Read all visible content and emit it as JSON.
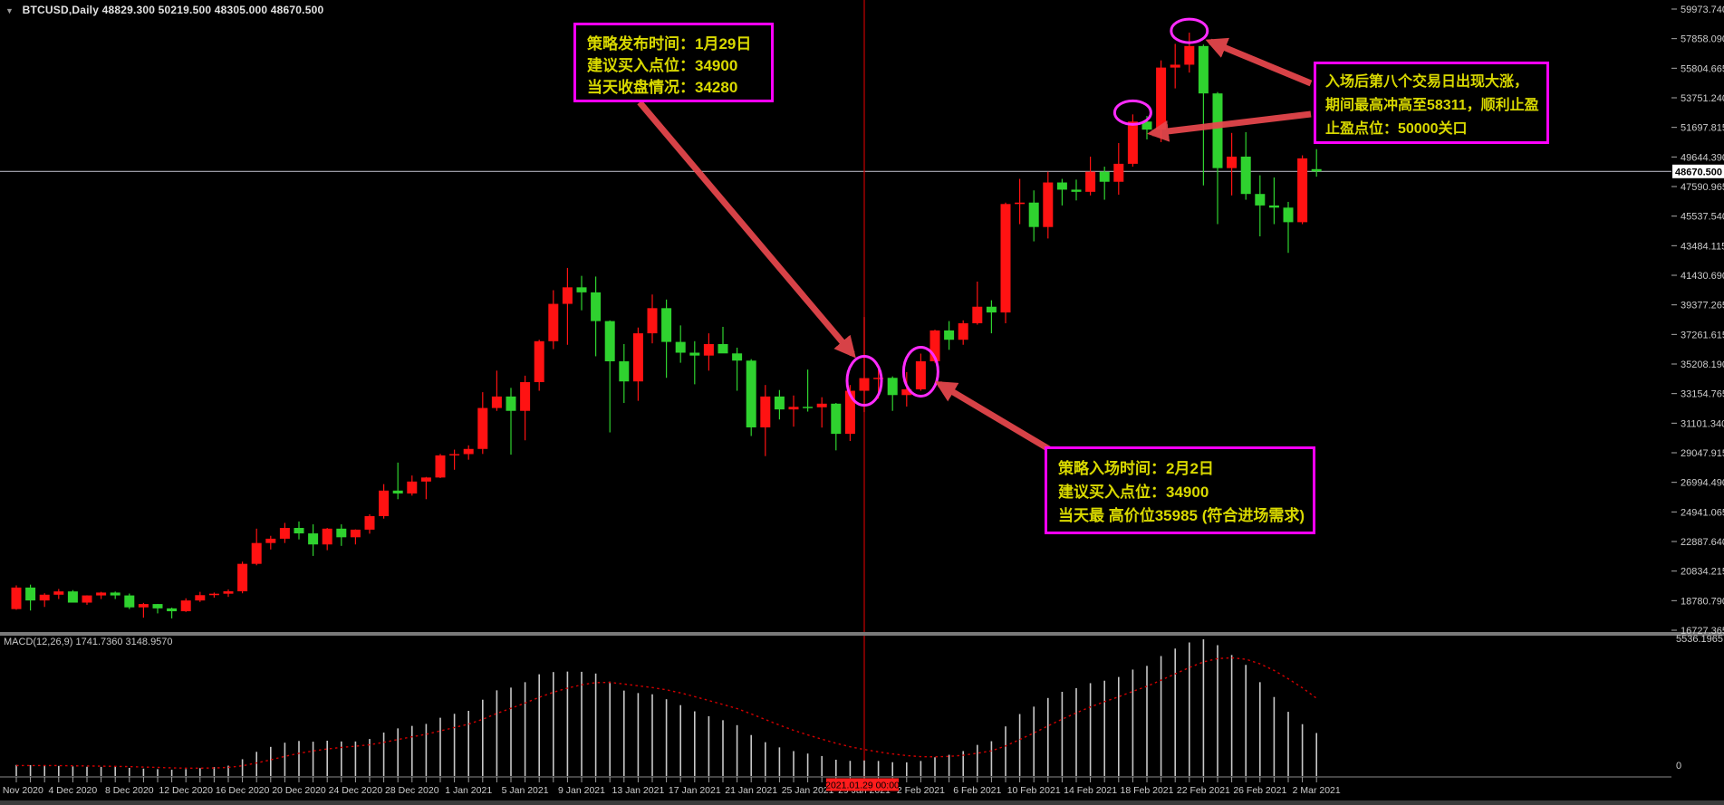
{
  "title": {
    "symbol": "BTCUSD,Daily",
    "ohlc": "48829.300 50219.500 48305.000 48670.500"
  },
  "indicator": {
    "name": "MACD(12,26,9)",
    "values": "1741.7360 3148.9570"
  },
  "annotations": {
    "release": {
      "lines": [
        "策略发布时间：1月29日",
        "建议买入点位：34900",
        "当天收盘情况：34280"
      ]
    },
    "profit": {
      "lines": [
        "入场后第八个交易日出现大涨，",
        "期间最高冲高至58311，顺利止盈",
        "止盈点位：50000关口"
      ]
    },
    "entry": {
      "lines": [
        "策略入场时间：2月2日",
        "建议买入点位：34900",
        "当天最 高价位35985 (符合进场需求)"
      ]
    }
  },
  "colors": {
    "bull": "#ff1212",
    "bear": "#2fd22f",
    "histogram": "#c8c8c8",
    "signal_line": "#d40000",
    "price_line": "#aeaeba",
    "crosshair": "#c40000",
    "annotation_border": "#ff00ff",
    "annotation_text": "#d9d900",
    "arrow": "#e8474d",
    "badge_bg": "#ff1c1c",
    "axis_text": "#cccccc"
  },
  "chart_data": {
    "type": "candlestick",
    "symbol": "BTCUSD",
    "timeframe": "Daily",
    "legend_position": "none",
    "grid": false,
    "current_price": "48670.500",
    "crosshair_date_label": "2021.01.29 00:00",
    "crosshair_date": "29 Jan 2021",
    "price_axis_labels": [
      "59973.740",
      "57858.090",
      "55804.665",
      "53751.240",
      "51697.815",
      "49644.390",
      "47590.965",
      "45537.540",
      "43484.115",
      "41430.690",
      "39377.265",
      "37261.615",
      "35208.190",
      "33154.765",
      "31101.340",
      "29047.915",
      "26994.490",
      "24941.065",
      "22887.640",
      "20834.215",
      "18780.790",
      "16727.365"
    ],
    "price_axis_range": [
      16727.365,
      59973.74
    ],
    "macd_axis": {
      "max_label": "5536.1965",
      "zero_label": "0",
      "max": 5536.1965
    },
    "columns": [
      "date",
      "open",
      "high",
      "low",
      "close",
      "macd",
      "signal"
    ],
    "candles": [
      [
        "30 Nov 2020",
        18200,
        19850,
        18150,
        19700,
        450,
        420
      ],
      [
        "1 Dec 2020",
        19700,
        19900,
        18100,
        18800,
        440,
        425
      ],
      [
        "2 Dec 2020",
        18800,
        19300,
        18350,
        19200,
        420,
        424
      ],
      [
        "3 Dec 2020",
        19200,
        19600,
        18900,
        19430,
        410,
        421
      ],
      [
        "4 Dec 2020",
        19430,
        19520,
        18650,
        18650,
        390,
        415
      ],
      [
        "5 Dec 2020",
        18650,
        19160,
        18500,
        19150,
        375,
        407
      ],
      [
        "6 Dec 2020",
        19150,
        19400,
        18900,
        19350,
        370,
        400
      ],
      [
        "7 Dec 2020",
        19350,
        19420,
        18900,
        19150,
        365,
        393
      ],
      [
        "8 Dec 2020",
        19150,
        19280,
        18200,
        18320,
        330,
        380
      ],
      [
        "9 Dec 2020",
        18320,
        18630,
        17600,
        18550,
        300,
        364
      ],
      [
        "10 Dec 2020",
        18550,
        18560,
        17900,
        18250,
        280,
        347
      ],
      [
        "11 Dec 2020",
        18250,
        18300,
        17550,
        18050,
        255,
        329
      ],
      [
        "12 Dec 2020",
        18050,
        18950,
        18000,
        18800,
        280,
        319
      ],
      [
        "13 Dec 2020",
        18800,
        19400,
        18700,
        19170,
        320,
        319
      ],
      [
        "14 Dec 2020",
        19170,
        19350,
        19000,
        19270,
        365,
        328
      ],
      [
        "15 Dec 2020",
        19270,
        19570,
        19050,
        19440,
        420,
        347
      ],
      [
        "16 Dec 2020",
        19440,
        21500,
        19300,
        21350,
        680,
        413
      ],
      [
        "17 Dec 2020",
        21350,
        23800,
        21250,
        22800,
        980,
        527
      ],
      [
        "18 Dec 2020",
        22800,
        23300,
        22350,
        23100,
        1180,
        657
      ],
      [
        "19 Dec 2020",
        23100,
        24200,
        22800,
        23850,
        1350,
        796
      ],
      [
        "20 Dec 2020",
        23850,
        24300,
        23050,
        23470,
        1420,
        921
      ],
      [
        "21 Dec 2020",
        23470,
        24100,
        21900,
        22700,
        1390,
        1015
      ],
      [
        "22 Dec 2020",
        22700,
        23850,
        22300,
        23800,
        1430,
        1098
      ],
      [
        "23 Dec 2020",
        23800,
        24100,
        22600,
        23200,
        1400,
        1158
      ],
      [
        "24 Dec 2020",
        23200,
        23750,
        22700,
        23730,
        1400,
        1207
      ],
      [
        "25 Dec 2020",
        23730,
        24800,
        23450,
        24670,
        1500,
        1265
      ],
      [
        "26 Dec 2020",
        24670,
        26900,
        24500,
        26450,
        1760,
        1364
      ],
      [
        "27 Dec 2020",
        26450,
        28400,
        25850,
        26250,
        1930,
        1477
      ],
      [
        "28 Dec 2020",
        26250,
        27500,
        26100,
        27080,
        2030,
        1588
      ],
      [
        "29 Dec 2020",
        27080,
        27400,
        25850,
        27360,
        2110,
        1692
      ],
      [
        "30 Dec 2020",
        27360,
        29000,
        27320,
        28900,
        2360,
        1826
      ],
      [
        "31 Dec 2020",
        28900,
        29300,
        27900,
        28990,
        2520,
        1965
      ],
      [
        "1 Jan 2021",
        28990,
        29600,
        28600,
        29350,
        2640,
        2100
      ],
      [
        "2 Jan 2021",
        29350,
        33300,
        29000,
        32200,
        3090,
        2298
      ],
      [
        "3 Jan 2021",
        32200,
        34800,
        32000,
        33000,
        3470,
        2532
      ],
      [
        "4 Jan 2021",
        33000,
        33600,
        28950,
        32000,
        3580,
        2742
      ],
      [
        "5 Jan 2021",
        32000,
        34450,
        29950,
        34000,
        3800,
        2954
      ],
      [
        "6 Jan 2021",
        34000,
        36950,
        33400,
        36850,
        4120,
        3187
      ],
      [
        "7 Jan 2021",
        36850,
        40400,
        36300,
        39450,
        4210,
        3392
      ],
      [
        "8 Jan 2021",
        39450,
        41950,
        36600,
        40600,
        4230,
        3560
      ],
      [
        "9 Jan 2021",
        40600,
        41400,
        39000,
        40250,
        4220,
        3692
      ],
      [
        "10 Jan 2021",
        40250,
        41350,
        35800,
        38250,
        4150,
        3783
      ],
      [
        "11 Jan 2021",
        38250,
        38300,
        30500,
        35450,
        3820,
        3790
      ],
      [
        "12 Jan 2021",
        35450,
        36650,
        32550,
        34050,
        3460,
        3724
      ],
      [
        "13 Jan 2021",
        34050,
        37800,
        32700,
        37400,
        3360,
        3651
      ],
      [
        "14 Jan 2021",
        37400,
        40100,
        36700,
        39150,
        3310,
        3583
      ],
      [
        "15 Jan 2021",
        39150,
        39750,
        34300,
        36800,
        3110,
        3489
      ],
      [
        "16 Jan 2021",
        36800,
        37950,
        35350,
        36050,
        2870,
        3365
      ],
      [
        "17 Jan 2021",
        36050,
        36850,
        33850,
        35850,
        2620,
        3216
      ],
      [
        "18 Jan 2021",
        35850,
        37400,
        34800,
        36650,
        2420,
        3057
      ],
      [
        "19 Jan 2021",
        36650,
        37850,
        36200,
        36000,
        2260,
        2897
      ],
      [
        "20 Jan 2021",
        36000,
        36400,
        33400,
        35500,
        2060,
        2730
      ],
      [
        "21 Jan 2021",
        35500,
        35600,
        30250,
        30850,
        1660,
        2516
      ],
      [
        "22 Jan 2021",
        30850,
        33800,
        28850,
        33000,
        1370,
        2287
      ],
      [
        "23 Jan 2021",
        33000,
        33450,
        31400,
        32100,
        1160,
        2062
      ],
      [
        "24 Jan 2021",
        32100,
        33070,
        30900,
        32280,
        1010,
        1852
      ],
      [
        "25 Jan 2021",
        32280,
        34875,
        31950,
        32250,
        910,
        1663
      ],
      [
        "26 Jan 2021",
        32250,
        32950,
        30837,
        32500,
        810,
        1493
      ],
      [
        "27 Jan 2021",
        32500,
        32550,
        29250,
        30400,
        660,
        1326
      ],
      [
        "28 Jan 2021",
        30400,
        33800,
        29900,
        33400,
        615,
        1184
      ],
      [
        "29 Jan 2021",
        33400,
        38531,
        31915,
        34280,
        630,
        1073
      ],
      [
        "30 Jan 2021",
        34280,
        34900,
        32850,
        34300,
        610,
        980
      ],
      [
        "31 Jan 2021",
        34300,
        34400,
        32000,
        33100,
        560,
        896
      ],
      [
        "1 Feb 2021",
        33100,
        34700,
        32300,
        33500,
        555,
        828
      ],
      [
        "2 Feb 2021",
        33500,
        35985,
        33400,
        35450,
        610,
        784
      ],
      [
        "3 Feb 2021",
        35450,
        37650,
        35350,
        37600,
        760,
        779
      ],
      [
        "4 Feb 2021",
        37600,
        38250,
        36250,
        36950,
        860,
        795
      ],
      [
        "5 Feb 2021",
        36950,
        38300,
        36600,
        38100,
        1010,
        838
      ],
      [
        "6 Feb 2021",
        38100,
        41000,
        38000,
        39250,
        1260,
        923
      ],
      [
        "7 Feb 2021",
        39250,
        39700,
        37400,
        38850,
        1410,
        1020
      ],
      [
        "8 Feb 2021",
        38850,
        46500,
        38100,
        46400,
        2010,
        1218
      ],
      [
        "9 Feb 2021",
        46400,
        48150,
        45000,
        46500,
        2510,
        1477
      ],
      [
        "10 Feb 2021",
        46500,
        47350,
        43800,
        44800,
        2810,
        1743
      ],
      [
        "11 Feb 2021",
        44800,
        48650,
        44000,
        47900,
        3160,
        2027
      ],
      [
        "12 Feb 2021",
        47900,
        48150,
        46300,
        47400,
        3410,
        2303
      ],
      [
        "13 Feb 2021",
        47400,
        48100,
        46650,
        47250,
        3560,
        2555
      ],
      [
        "14 Feb 2021",
        47250,
        49700,
        47000,
        48650,
        3760,
        2796
      ],
      [
        "15 Feb 2021",
        48650,
        49000,
        46700,
        47950,
        3860,
        3009
      ],
      [
        "16 Feb 2021",
        47950,
        50645,
        47050,
        49200,
        4010,
        3209
      ],
      [
        "17 Feb 2021",
        49200,
        52640,
        49000,
        52140,
        4310,
        3429
      ],
      [
        "18 Feb 2021",
        52140,
        52530,
        50900,
        51580,
        4460,
        3635
      ],
      [
        "19 Feb 2021",
        51580,
        56400,
        50710,
        55900,
        4860,
        3880
      ],
      [
        "20 Feb 2021",
        55900,
        57550,
        54450,
        56100,
        5160,
        4136
      ],
      [
        "21 Feb 2021",
        56100,
        58330,
        55550,
        57400,
        5410,
        4391
      ],
      [
        "22 Feb 2021",
        57400,
        57500,
        47700,
        54100,
        5536,
        4620
      ],
      [
        "23 Feb 2021",
        54100,
        54200,
        45000,
        48900,
        5300,
        4756
      ],
      [
        "24 Feb 2021",
        48900,
        51350,
        47000,
        49700,
        4900,
        4785
      ],
      [
        "25 Feb 2021",
        49700,
        51400,
        46700,
        47100,
        4500,
        4728
      ],
      [
        "26 Feb 2021",
        47100,
        48400,
        44150,
        46300,
        3800,
        4542
      ],
      [
        "27 Feb 2021",
        46300,
        48250,
        45000,
        46150,
        3200,
        4274
      ],
      [
        "28 Feb 2021",
        46150,
        46550,
        43000,
        45135,
        2600,
        3939
      ],
      [
        "1 Mar 2021",
        45135,
        49790,
        45000,
        49580,
        2100,
        3571
      ],
      [
        "2 Mar 2021",
        48829.3,
        50219.5,
        48305.0,
        48670.5,
        1741.736,
        3148.957
      ]
    ],
    "highlighted_candles": [
      {
        "date": "29 Jan 2021",
        "part": "body"
      },
      {
        "date": "2 Feb 2021",
        "part": "body"
      },
      {
        "date": "17 Feb 2021",
        "part": "high"
      },
      {
        "date": "21 Feb 2021",
        "part": "high"
      }
    ]
  }
}
